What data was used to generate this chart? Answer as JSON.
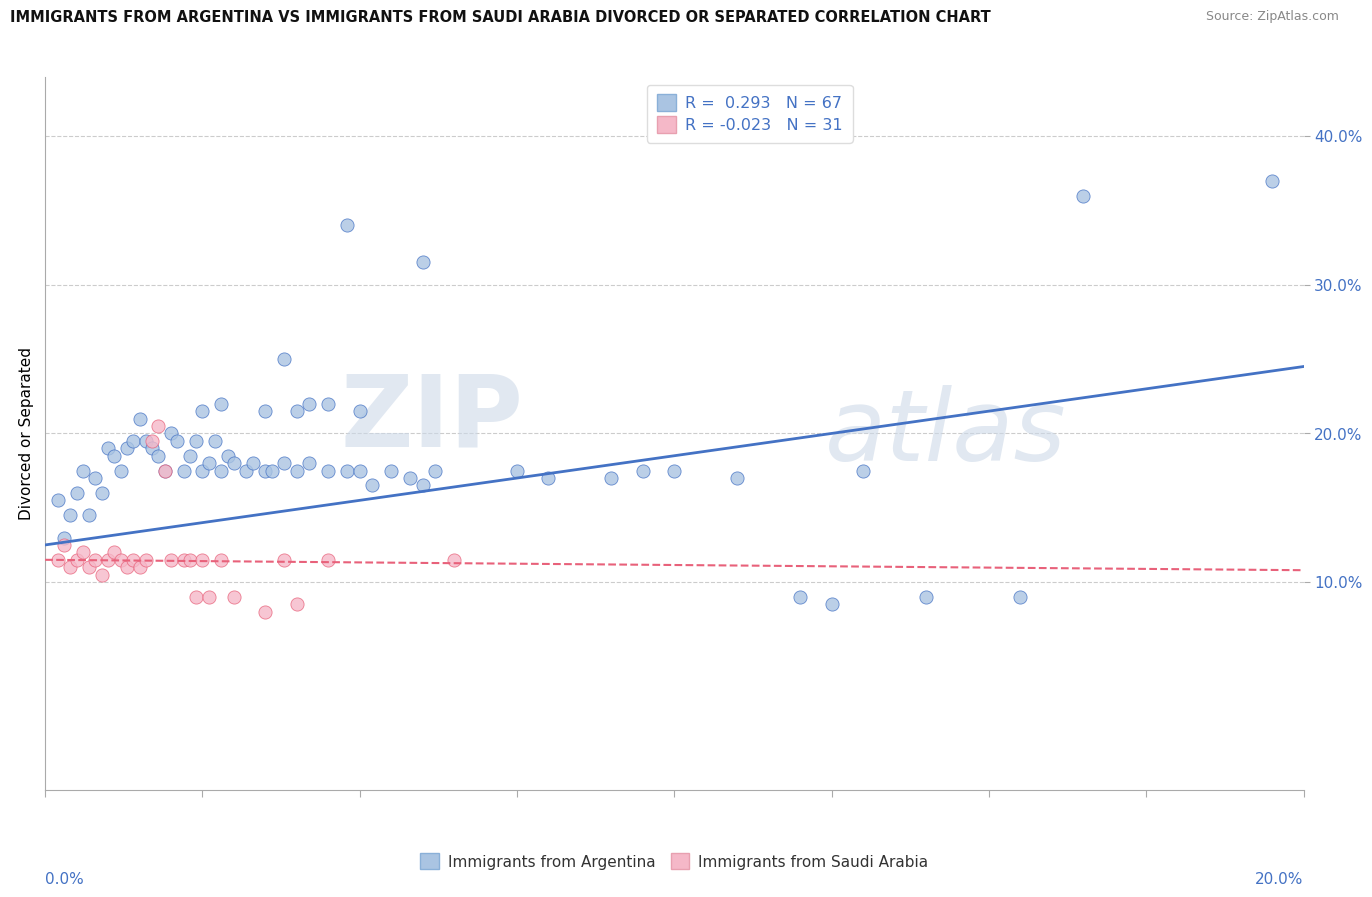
{
  "title": "IMMIGRANTS FROM ARGENTINA VS IMMIGRANTS FROM SAUDI ARABIA DIVORCED OR SEPARATED CORRELATION CHART",
  "source": "Source: ZipAtlas.com",
  "ylabel": "Divorced or Separated",
  "y_ticks": [
    0.1,
    0.2,
    0.3,
    0.4
  ],
  "y_tick_labels": [
    "10.0%",
    "20.0%",
    "30.0%",
    "40.0%"
  ],
  "x_tick_labels": [
    "0.0%",
    "",
    "",
    "",
    "",
    "",
    "",
    "",
    "20.0%"
  ],
  "xlim": [
    0.0,
    0.2
  ],
  "ylim": [
    -0.04,
    0.44
  ],
  "r_argentina": 0.293,
  "n_argentina": 67,
  "r_saudi": -0.023,
  "n_saudi": 31,
  "legend_entries": [
    "Immigrants from Argentina",
    "Immigrants from Saudi Arabia"
  ],
  "color_argentina": "#aac4e2",
  "color_saudi": "#f5b8c8",
  "trend_color_argentina": "#4472c4",
  "trend_color_saudi": "#e8617a",
  "watermark_zip": "ZIP",
  "watermark_atlas": "atlas",
  "arg_trend_x0": 0.0,
  "arg_trend_y0": 0.125,
  "arg_trend_x1": 0.2,
  "arg_trend_y1": 0.245,
  "sau_trend_x0": 0.0,
  "sau_trend_y0": 0.115,
  "sau_trend_x1": 0.2,
  "sau_trend_y1": 0.108,
  "argentina_scatter": [
    [
      0.002,
      0.155
    ],
    [
      0.003,
      0.13
    ],
    [
      0.004,
      0.145
    ],
    [
      0.005,
      0.16
    ],
    [
      0.006,
      0.175
    ],
    [
      0.007,
      0.145
    ],
    [
      0.008,
      0.17
    ],
    [
      0.009,
      0.16
    ],
    [
      0.01,
      0.19
    ],
    [
      0.011,
      0.185
    ],
    [
      0.012,
      0.175
    ],
    [
      0.013,
      0.19
    ],
    [
      0.014,
      0.195
    ],
    [
      0.015,
      0.21
    ],
    [
      0.016,
      0.195
    ],
    [
      0.017,
      0.19
    ],
    [
      0.018,
      0.185
    ],
    [
      0.019,
      0.175
    ],
    [
      0.02,
      0.2
    ],
    [
      0.021,
      0.195
    ],
    [
      0.022,
      0.175
    ],
    [
      0.023,
      0.185
    ],
    [
      0.024,
      0.195
    ],
    [
      0.025,
      0.175
    ],
    [
      0.026,
      0.18
    ],
    [
      0.027,
      0.195
    ],
    [
      0.028,
      0.175
    ],
    [
      0.029,
      0.185
    ],
    [
      0.03,
      0.18
    ],
    [
      0.032,
      0.175
    ],
    [
      0.033,
      0.18
    ],
    [
      0.035,
      0.175
    ],
    [
      0.036,
      0.175
    ],
    [
      0.038,
      0.18
    ],
    [
      0.04,
      0.175
    ],
    [
      0.042,
      0.18
    ],
    [
      0.045,
      0.175
    ],
    [
      0.048,
      0.175
    ],
    [
      0.05,
      0.175
    ],
    [
      0.052,
      0.165
    ],
    [
      0.055,
      0.175
    ],
    [
      0.058,
      0.17
    ],
    [
      0.06,
      0.165
    ],
    [
      0.062,
      0.175
    ],
    [
      0.035,
      0.215
    ],
    [
      0.04,
      0.215
    ],
    [
      0.045,
      0.22
    ],
    [
      0.05,
      0.215
    ],
    [
      0.038,
      0.25
    ],
    [
      0.042,
      0.22
    ],
    [
      0.025,
      0.215
    ],
    [
      0.028,
      0.22
    ],
    [
      0.048,
      0.34
    ],
    [
      0.06,
      0.315
    ],
    [
      0.075,
      0.175
    ],
    [
      0.08,
      0.17
    ],
    [
      0.09,
      0.17
    ],
    [
      0.095,
      0.175
    ],
    [
      0.1,
      0.175
    ],
    [
      0.11,
      0.17
    ],
    [
      0.12,
      0.09
    ],
    [
      0.125,
      0.085
    ],
    [
      0.13,
      0.175
    ],
    [
      0.14,
      0.09
    ],
    [
      0.155,
      0.09
    ],
    [
      0.165,
      0.36
    ],
    [
      0.195,
      0.37
    ]
  ],
  "saudi_scatter": [
    [
      0.002,
      0.115
    ],
    [
      0.003,
      0.125
    ],
    [
      0.004,
      0.11
    ],
    [
      0.005,
      0.115
    ],
    [
      0.006,
      0.12
    ],
    [
      0.007,
      0.11
    ],
    [
      0.008,
      0.115
    ],
    [
      0.009,
      0.105
    ],
    [
      0.01,
      0.115
    ],
    [
      0.011,
      0.12
    ],
    [
      0.012,
      0.115
    ],
    [
      0.013,
      0.11
    ],
    [
      0.014,
      0.115
    ],
    [
      0.015,
      0.11
    ],
    [
      0.016,
      0.115
    ],
    [
      0.017,
      0.195
    ],
    [
      0.018,
      0.205
    ],
    [
      0.019,
      0.175
    ],
    [
      0.02,
      0.115
    ],
    [
      0.022,
      0.115
    ],
    [
      0.023,
      0.115
    ],
    [
      0.024,
      0.09
    ],
    [
      0.025,
      0.115
    ],
    [
      0.026,
      0.09
    ],
    [
      0.028,
      0.115
    ],
    [
      0.03,
      0.09
    ],
    [
      0.035,
      0.08
    ],
    [
      0.038,
      0.115
    ],
    [
      0.04,
      0.085
    ],
    [
      0.045,
      0.115
    ],
    [
      0.065,
      0.115
    ]
  ]
}
